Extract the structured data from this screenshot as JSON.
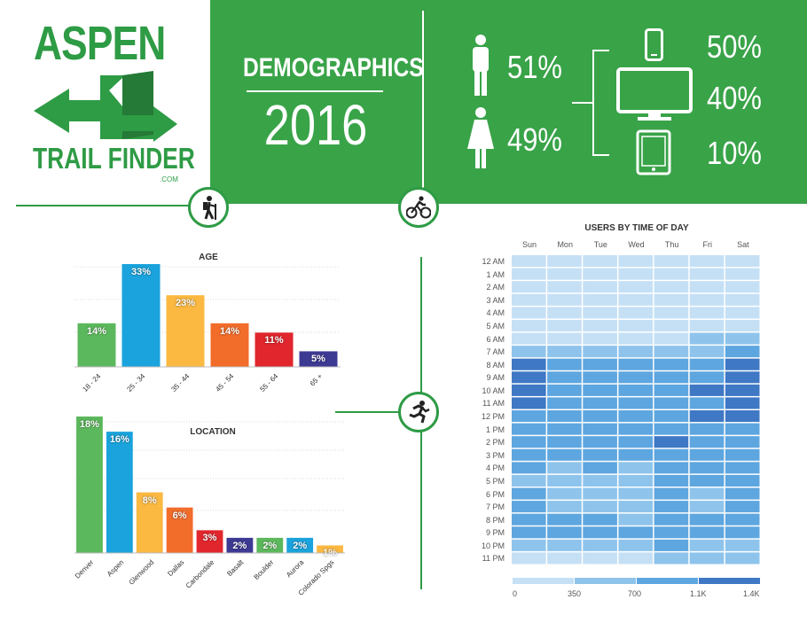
{
  "logo": {
    "line1": "ASPEN",
    "line2": "TRAIL FINDER",
    "suffix": ".COM"
  },
  "header": {
    "title": "DEMOGRAPHICS",
    "year": "2016"
  },
  "gender": {
    "male_pct": "51%",
    "female_pct": "49%"
  },
  "devices": {
    "mobile_pct": "50%",
    "desktop_pct": "40%",
    "tablet_pct": "10%"
  },
  "colors": {
    "green": "#39a348",
    "dark_green": "#2e9b45"
  },
  "icons": [
    "hiker-icon",
    "cyclist-icon",
    "runner-icon",
    "male-icon",
    "female-icon",
    "mobile-icon",
    "desktop-icon",
    "tablet-icon"
  ],
  "chart_data": [
    {
      "type": "bar",
      "title": "AGE",
      "categories": [
        "18 - 24",
        "25 - 34",
        "35 - 44",
        "45 - 54",
        "55 - 64",
        "65 +"
      ],
      "values": [
        14,
        33,
        23,
        14,
        11,
        5
      ],
      "labels": [
        "14%",
        "33%",
        "23%",
        "14%",
        "11%",
        "5%"
      ],
      "colors": [
        "#5cb85c",
        "#1aa3dc",
        "#fbb941",
        "#f26c2a",
        "#e1262d",
        "#3d3a94"
      ],
      "ylim": [
        0,
        33
      ]
    },
    {
      "type": "bar",
      "title": "LOCATION",
      "categories": [
        "Denver",
        "Aspen",
        "Glenwood",
        "Dallas",
        "Carbondale",
        "Basalt",
        "Boulder",
        "Aurora",
        "Colorado Spgs"
      ],
      "values": [
        18,
        16,
        8,
        6,
        3,
        2,
        2,
        2,
        1
      ],
      "labels": [
        "18%",
        "16%",
        "8%",
        "6%",
        "3%",
        "2%",
        "2%",
        "2%",
        "1%"
      ],
      "colors": [
        "#5cb85c",
        "#1aa3dc",
        "#fbb941",
        "#f26c2a",
        "#e1262d",
        "#3d3a94",
        "#5cb85c",
        "#1aa3dc",
        "#fbb941"
      ],
      "ylim": [
        0,
        18
      ]
    },
    {
      "type": "heatmap",
      "title": "USERS BY TIME OF DAY",
      "x": [
        "Sun",
        "Mon",
        "Tue",
        "Wed",
        "Thu",
        "Fri",
        "Sat"
      ],
      "y": [
        "12 AM",
        "1 AM",
        "2 AM",
        "3 AM",
        "4 AM",
        "5 AM",
        "6 AM",
        "7 AM",
        "8 AM",
        "9 AM",
        "10 AM",
        "11 AM",
        "12 PM",
        "1 PM",
        "2 PM",
        "3 PM",
        "4 PM",
        "5 PM",
        "6 PM",
        "7 PM",
        "8 PM",
        "9 PM",
        "10 PM",
        "11 PM"
      ],
      "values": [
        [
          0,
          0,
          0,
          0,
          0,
          0,
          0
        ],
        [
          0,
          0,
          0,
          0,
          0,
          0,
          0
        ],
        [
          0,
          0,
          0,
          0,
          0,
          0,
          0
        ],
        [
          0,
          0,
          0,
          0,
          0,
          0,
          0
        ],
        [
          0,
          0,
          0,
          0,
          0,
          0,
          0
        ],
        [
          0,
          0,
          0,
          0,
          0,
          0,
          0
        ],
        [
          0,
          0,
          0,
          0,
          0,
          1,
          1
        ],
        [
          1,
          1,
          1,
          1,
          1,
          1,
          2
        ],
        [
          3,
          2,
          2,
          2,
          2,
          2,
          3
        ],
        [
          3,
          2,
          2,
          2,
          2,
          2,
          3
        ],
        [
          3,
          2,
          2,
          2,
          2,
          3,
          3
        ],
        [
          3,
          2,
          2,
          2,
          2,
          2,
          3
        ],
        [
          2,
          2,
          2,
          2,
          2,
          3,
          3
        ],
        [
          2,
          2,
          2,
          2,
          2,
          2,
          2
        ],
        [
          2,
          2,
          2,
          2,
          3,
          2,
          2
        ],
        [
          2,
          2,
          2,
          2,
          2,
          2,
          2
        ],
        [
          2,
          1,
          2,
          1,
          2,
          2,
          2
        ],
        [
          1,
          1,
          1,
          1,
          2,
          2,
          2
        ],
        [
          2,
          1,
          1,
          1,
          2,
          1,
          2
        ],
        [
          2,
          1,
          1,
          1,
          2,
          1,
          2
        ],
        [
          2,
          2,
          2,
          1,
          2,
          2,
          2
        ],
        [
          2,
          2,
          2,
          2,
          2,
          2,
          2
        ],
        [
          1,
          1,
          1,
          1,
          2,
          1,
          1
        ],
        [
          0,
          0,
          0,
          0,
          1,
          1,
          1
        ]
      ],
      "scale": [
        "0",
        "350",
        "700",
        "1.1K",
        "1.4K"
      ],
      "scale_colors": [
        "#c5e0f5",
        "#8ec4ec",
        "#5ea6df",
        "#3f78c4"
      ]
    }
  ]
}
